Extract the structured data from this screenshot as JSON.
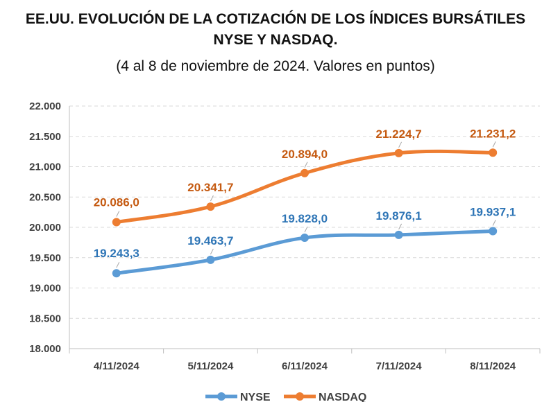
{
  "chart_data": {
    "type": "line",
    "title_line1": "EE.UU. EVOLUCIÓN DE LA COTIZACIÓN DE LOS ÍNDICES BURSÁTILES",
    "title_line2": "NYSE Y NASDAQ.",
    "subtitle": "(4 al 8 de noviembre de 2024. Valores en puntos)",
    "categories": [
      "4/11/2024",
      "5/11/2024",
      "6/11/2024",
      "7/11/2024",
      "8/11/2024"
    ],
    "ylim": [
      18000,
      22000
    ],
    "yticks": [
      18000,
      18500,
      19000,
      19500,
      20000,
      20500,
      21000,
      21500,
      22000
    ],
    "ytick_labels": [
      "18.000",
      "18.500",
      "19.000",
      "19.500",
      "20.000",
      "20.500",
      "21.000",
      "21.500",
      "22.000"
    ],
    "grid": true,
    "legend_position": "bottom",
    "series": [
      {
        "name": "NYSE",
        "color": "#5b9bd5",
        "label_color": "#2e75b6",
        "values": [
          19243.3,
          19463.7,
          19828.0,
          19876.1,
          19937.1
        ],
        "labels": [
          "19.243,3",
          "19.463,7",
          "19.828,0",
          "19.876,1",
          "19.937,1"
        ]
      },
      {
        "name": "NASDAQ",
        "color": "#ed7d31",
        "label_color": "#c55a11",
        "values": [
          20086.0,
          20341.7,
          20894.0,
          21224.7,
          21231.2
        ],
        "labels": [
          "20.086,0",
          "20.341,7",
          "20.894,0",
          "21.224,7",
          "21.231,2"
        ]
      }
    ]
  }
}
